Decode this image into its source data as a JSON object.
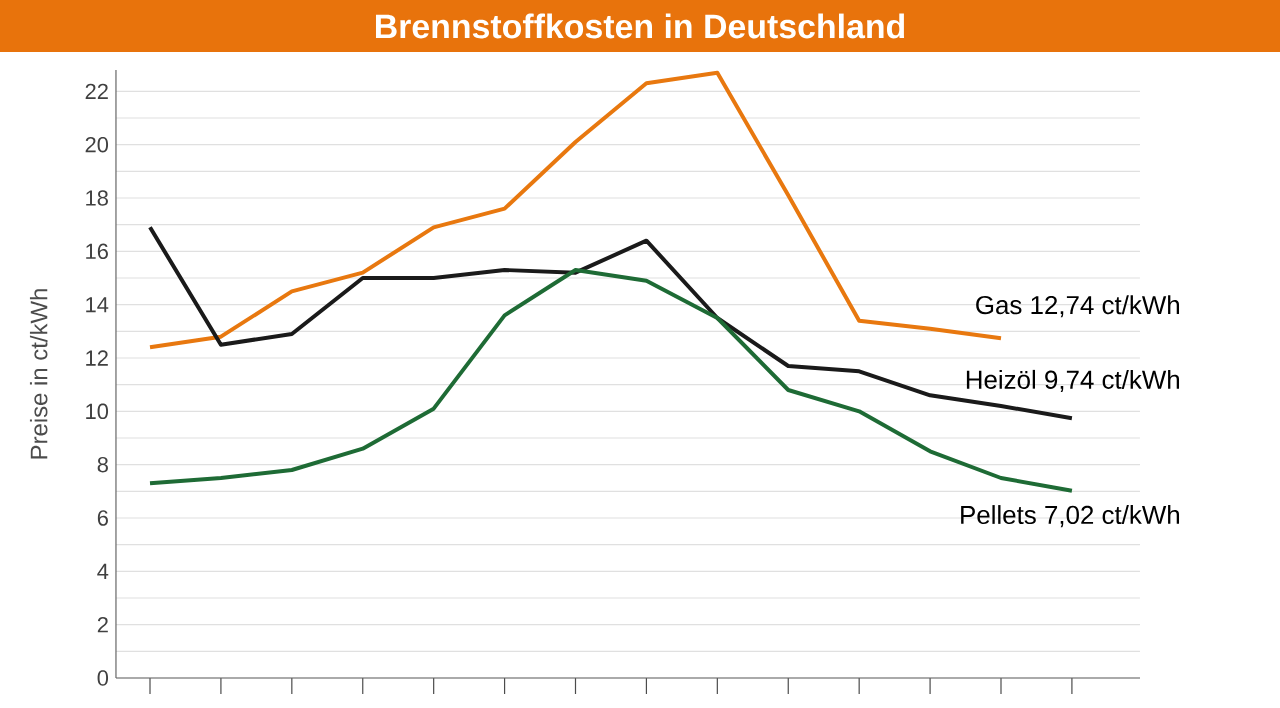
{
  "chart_data": {
    "type": "line",
    "title": "Brennstoffkosten in Deutschland",
    "ylabel": "Preise in ct/kWh",
    "categories": [
      null,
      null,
      null,
      null,
      null,
      null,
      null,
      null,
      null,
      null,
      null,
      null,
      null,
      null
    ],
    "series": [
      {
        "name": "Gas",
        "color": "#e8780f",
        "values": [
          12.4,
          12.8,
          14.5,
          15.2,
          16.9,
          17.6,
          20.1,
          22.3,
          22.7,
          18.1,
          13.4,
          13.1,
          12.74,
          null
        ],
        "value_labels": [
          null,
          null,
          null,
          null,
          null,
          null,
          null,
          null,
          null,
          null,
          null,
          null,
          "12,74 ct/kWh",
          null
        ]
      },
      {
        "name": "Heizöl",
        "color": "#1a1a1a",
        "values": [
          16.9,
          12.5,
          12.9,
          15.0,
          15.0,
          15.3,
          15.2,
          16.4,
          13.5,
          11.7,
          11.5,
          10.6,
          10.2,
          9.74
        ],
        "value_labels": [
          null,
          null,
          null,
          null,
          null,
          null,
          null,
          null,
          null,
          null,
          null,
          null,
          null,
          "9,74 ct/kWh"
        ]
      },
      {
        "name": "Pellets",
        "color": "#1e6b35",
        "values": [
          7.3,
          7.5,
          7.8,
          8.6,
          10.1,
          13.6,
          15.3,
          14.9,
          13.5,
          10.8,
          10.0,
          8.5,
          7.5,
          7.02
        ],
        "value_labels": [
          null,
          null,
          null,
          null,
          null,
          null,
          null,
          null,
          null,
          null,
          null,
          null,
          null,
          "7,02 ct/kWh"
        ]
      }
    ],
    "ylim": [
      0,
      22.8
    ],
    "yticks": [
      0,
      {
        "value": 1,
        "label": null
      },
      2,
      {
        "value": 3,
        "label": null
      },
      4,
      {
        "value": 5,
        "label": null
      },
      6,
      {
        "value": 7,
        "label": null
      },
      8,
      {
        "value": 9,
        "label": null
      },
      10,
      {
        "value": 11,
        "label": null
      },
      12,
      {
        "value": 13,
        "label": null
      },
      14,
      {
        "value": 15,
        "label": null
      },
      16,
      {
        "value": 17,
        "label": null
      },
      18,
      {
        "value": 19,
        "label": null
      },
      20,
      {
        "value": 21,
        "label": null
      },
      22
    ],
    "grid": "y",
    "marker": "none",
    "line_style": "solid"
  }
}
